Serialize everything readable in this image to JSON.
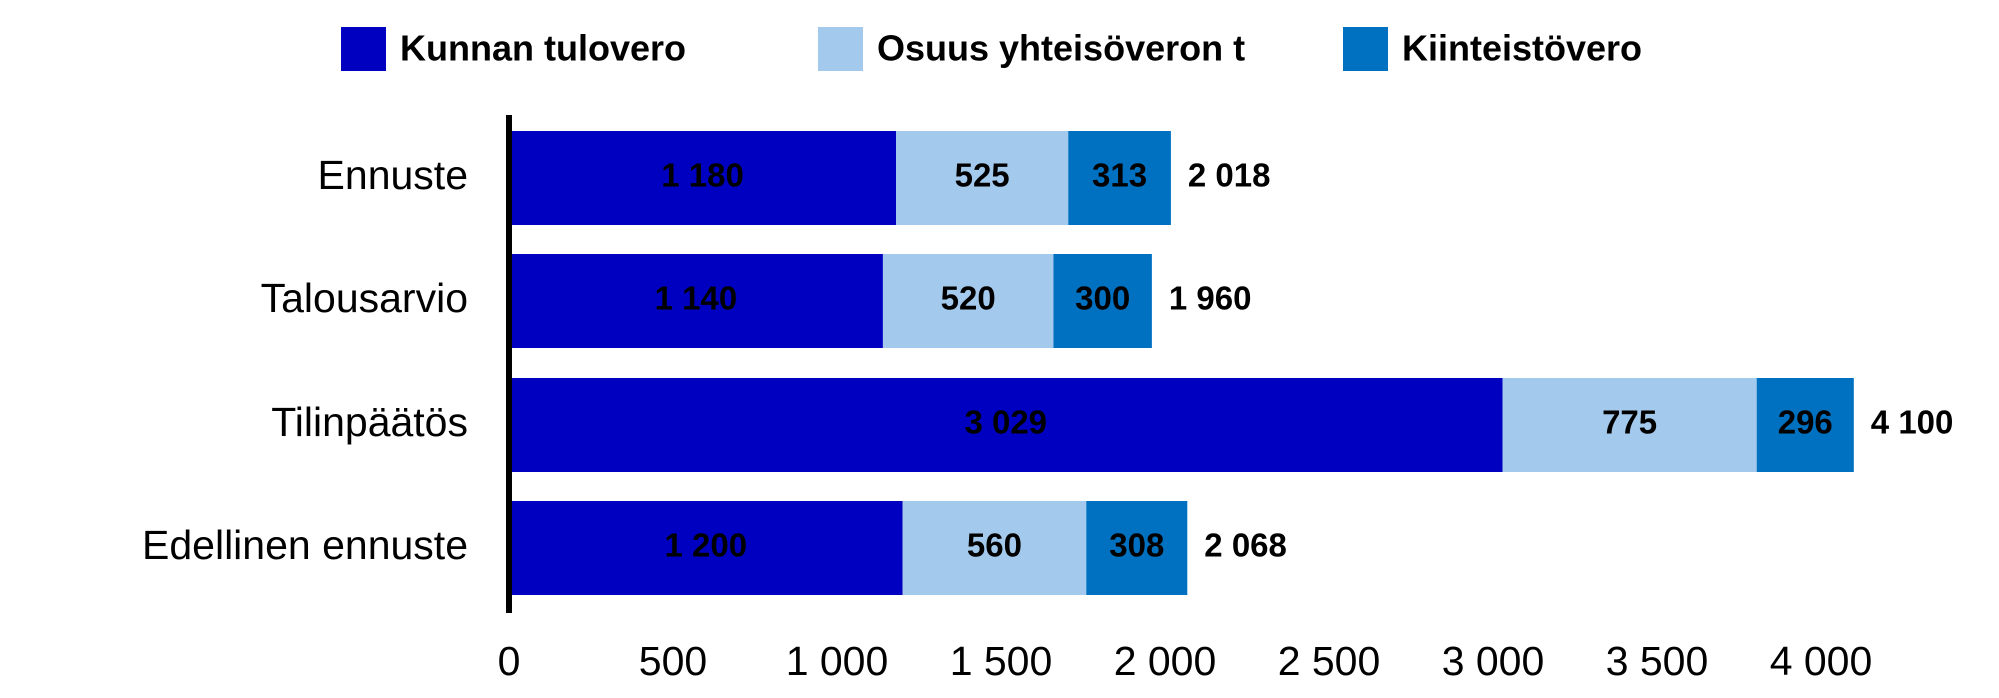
{
  "chart_data": {
    "type": "stacked-bar-horizontal",
    "categories": [
      "Ennuste",
      "Talousarvio",
      "Tilinpäätös",
      "Edellinen ennuste"
    ],
    "series": [
      {
        "name": "Kunnan tulovero",
        "color": "#0000c0",
        "values": [
          1180,
          1140,
          3029,
          1200
        ],
        "value_labels": [
          "1 180",
          "1 140",
          "3 029",
          "1 200"
        ]
      },
      {
        "name": "Osuus yhteisöveron t",
        "color": "#a3c9ec",
        "values": [
          525,
          520,
          775,
          560
        ]
      },
      {
        "name": "Kiinteistövero",
        "color": "#0070c0",
        "values": [
          313,
          300,
          296,
          308
        ]
      }
    ],
    "totals": [
      2018,
      1960,
      4100,
      2068
    ],
    "total_labels": [
      "2 018",
      "1 960",
      "4 100",
      "2 068"
    ],
    "xlim": [
      0,
      4000
    ],
    "xticks": [
      0,
      500,
      {
        "value": 1000,
        "label": "1 000"
      },
      {
        "value": 1500,
        "label": "1 500"
      },
      {
        "value": 2000,
        "label": "2 000"
      },
      {
        "value": 2500,
        "label": "2 500"
      },
      {
        "value": 3000,
        "label": "3 000"
      },
      {
        "value": 3500,
        "label": "3 500"
      },
      {
        "value": 4000,
        "label": "4 000"
      }
    ],
    "legend": "top",
    "grid": false
  }
}
